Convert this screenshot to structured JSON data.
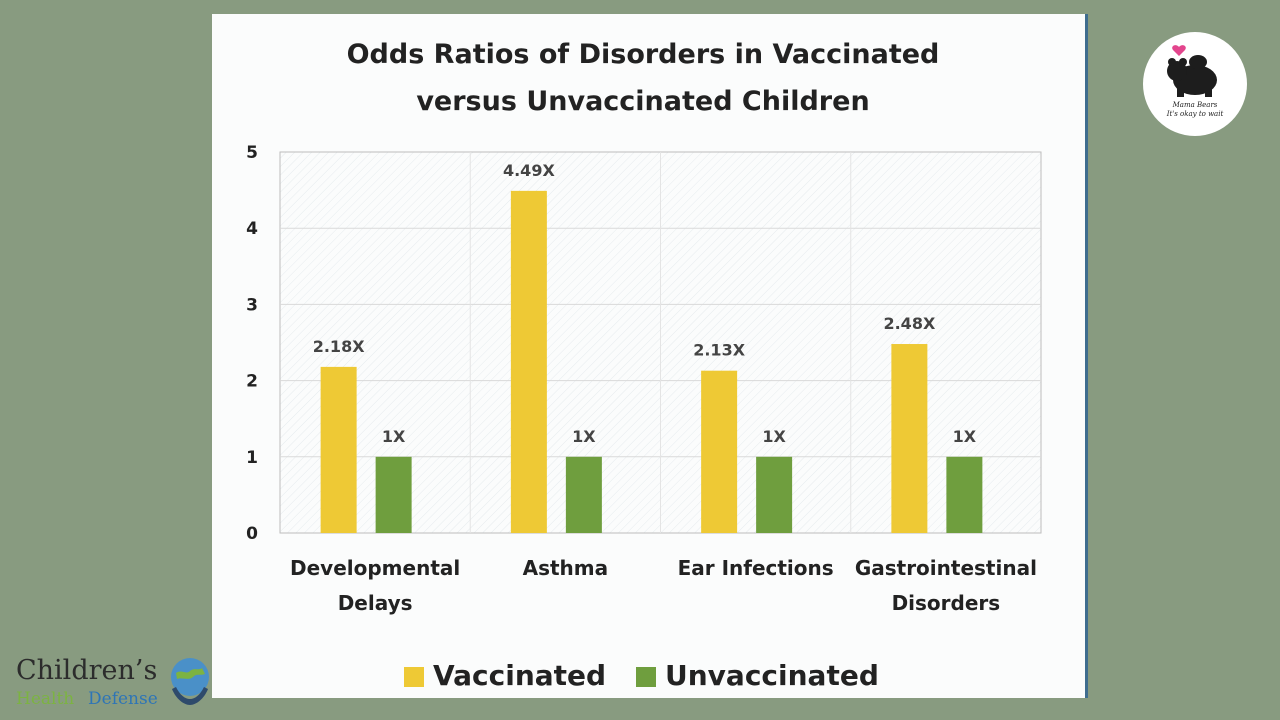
{
  "chart_data": {
    "type": "bar",
    "title_line1": "Odds Ratios of Disorders in Vaccinated",
    "title_line2": "versus Unvaccinated Children",
    "categories": [
      [
        "Developmental",
        "Delays"
      ],
      [
        "Asthma"
      ],
      [
        "Ear Infections"
      ],
      [
        "Gastrointestinal",
        "Disorders"
      ]
    ],
    "series": [
      {
        "name": "Vaccinated",
        "values": [
          2.18,
          4.49,
          2.13,
          2.48
        ],
        "labels": [
          "2.18X",
          "4.49X",
          "2.13X",
          "2.48X"
        ],
        "color": "#eec935"
      },
      {
        "name": "Unvaccinated",
        "values": [
          1,
          1,
          1,
          1
        ],
        "labels": [
          "1X",
          "1X",
          "1X",
          "1X"
        ],
        "color": "#6f9e3e"
      }
    ],
    "ylim": [
      0,
      5
    ],
    "yticks": [
      "0",
      "1",
      "2",
      "3",
      "4",
      "5"
    ],
    "grid": true,
    "legend_position": "bottom"
  },
  "badge": {
    "line1": "Mama Bears",
    "line2": "It's okay to wait"
  },
  "logo": {
    "line1": "Children’s",
    "word_health": "Health",
    "word_defense": "Defense"
  }
}
